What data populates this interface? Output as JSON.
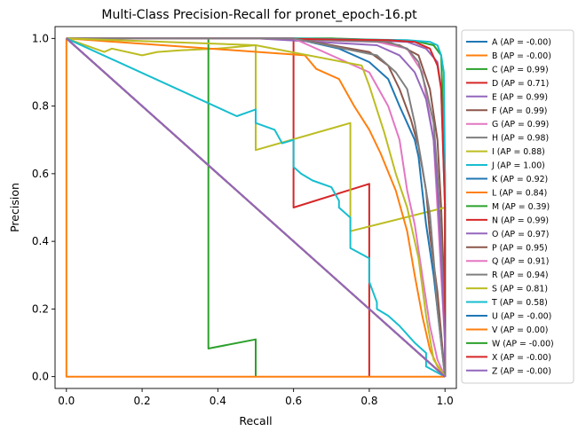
{
  "chart_data": {
    "type": "line",
    "title": "Multi-Class Precision-Recall for pronet_epoch-16.pt",
    "xlabel": "Recall",
    "ylabel": "Precision",
    "xlim": [
      -0.03,
      1.03
    ],
    "ylim": [
      -0.035,
      1.035
    ],
    "xticks": [
      0.0,
      0.2,
      0.4,
      0.6,
      0.8,
      1.0
    ],
    "yticks": [
      0.0,
      0.2,
      0.4,
      0.6,
      0.8,
      1.0
    ],
    "x_tick_labels": [
      "0.0",
      "0.2",
      "0.4",
      "0.6",
      "0.8",
      "1.0"
    ],
    "y_tick_labels": [
      "0.0",
      "0.2",
      "0.4",
      "0.6",
      "0.8",
      "1.0"
    ],
    "grid": false,
    "legend_position": "outside-right",
    "series": [
      {
        "name": "A (AP = -0.00)",
        "color": "#1f77b4",
        "x": [
          0,
          1
        ],
        "y": [
          1,
          0
        ]
      },
      {
        "name": "B (AP = -0.00)",
        "color": "#ff7f0e",
        "x": [
          0,
          1
        ],
        "y": [
          1,
          0
        ]
      },
      {
        "name": "C (AP = 0.99)",
        "color": "#2ca02c",
        "x": [
          0,
          0.4,
          0.7,
          0.85,
          0.93,
          0.97,
          0.99,
          1,
          1
        ],
        "y": [
          1,
          1,
          1,
          0.995,
          0.99,
          0.98,
          0.95,
          0.6,
          0
        ]
      },
      {
        "name": "D (AP = 0.71)",
        "color": "#d62728",
        "x": [
          0,
          0.6,
          0.6,
          0.8,
          0.8
        ],
        "y": [
          1,
          1,
          0.5,
          0.57,
          0
        ]
      },
      {
        "name": "E (AP = 0.99)",
        "color": "#9467bd",
        "x": [
          0,
          0.5,
          0.8,
          0.9,
          0.95,
          0.98,
          0.99,
          1,
          1
        ],
        "y": [
          1,
          1,
          0.995,
          0.99,
          0.97,
          0.93,
          0.85,
          0.5,
          0
        ]
      },
      {
        "name": "F (AP = 0.99)",
        "color": "#8c564b",
        "x": [
          0,
          0.5,
          0.8,
          0.88,
          0.93,
          0.96,
          0.98,
          0.99,
          1,
          1
        ],
        "y": [
          1,
          1,
          0.995,
          0.98,
          0.95,
          0.85,
          0.7,
          0.5,
          0.2,
          0
        ]
      },
      {
        "name": "G (AP = 0.99)",
        "color": "#e377c2",
        "x": [
          0,
          0.5,
          0.82,
          0.9,
          0.94,
          0.97,
          0.98,
          0.99,
          1,
          1
        ],
        "y": [
          1,
          1,
          0.99,
          0.97,
          0.9,
          0.7,
          0.5,
          0.3,
          0.1,
          0
        ]
      },
      {
        "name": "H (AP = 0.98)",
        "color": "#7f7f7f",
        "x": [
          0,
          0.5,
          0.85,
          0.9,
          0.93,
          0.95,
          0.97,
          0.98,
          0.99,
          1,
          1
        ],
        "y": [
          1,
          1,
          0.99,
          0.97,
          0.93,
          0.85,
          0.75,
          0.6,
          0.4,
          0.1,
          0
        ]
      },
      {
        "name": "I (AP = 0.88)",
        "color": "#bcbd22",
        "x": [
          0,
          0.1,
          0.12,
          0.2,
          0.24,
          0.3,
          0.4,
          0.5,
          0.5,
          0.75,
          0.75,
          1,
          1
        ],
        "y": [
          1,
          0.96,
          0.97,
          0.95,
          0.96,
          0.965,
          0.97,
          0.98,
          0.67,
          0.75,
          0.43,
          0.5,
          0
        ]
      },
      {
        "name": "J (AP = 1.00)",
        "color": "#17becf",
        "x": [
          0,
          0.6,
          0.9,
          0.96,
          0.98,
          0.99,
          0.997,
          1,
          1
        ],
        "y": [
          1,
          1,
          0.995,
          0.99,
          0.98,
          0.95,
          0.9,
          0.6,
          0
        ]
      },
      {
        "name": "K (AP = 0.92)",
        "color": "#1f77b4",
        "x": [
          0,
          0.6,
          0.72,
          0.8,
          0.85,
          0.88,
          0.9,
          0.92,
          0.93,
          0.94,
          0.95,
          0.97,
          1
        ],
        "y": [
          1,
          1,
          0.97,
          0.93,
          0.88,
          0.8,
          0.75,
          0.7,
          0.65,
          0.55,
          0.45,
          0.3,
          0
        ]
      },
      {
        "name": "L (AP = 0.84)",
        "color": "#ff7f0e",
        "x": [
          0,
          0.63,
          0.66,
          0.72,
          0.76,
          0.8,
          0.83,
          0.87,
          0.9,
          0.92,
          0.94,
          0.96,
          0.98,
          1
        ],
        "y": [
          1,
          0.95,
          0.91,
          0.88,
          0.8,
          0.73,
          0.66,
          0.55,
          0.43,
          0.3,
          0.18,
          0.08,
          0.03,
          0
        ]
      },
      {
        "name": "M (AP = 0.39)",
        "color": "#2ca02c",
        "x": [
          0,
          0.375,
          0.375,
          0.5,
          0.5
        ],
        "y": [
          1,
          1,
          0.083,
          0.11,
          0
        ]
      },
      {
        "name": "N (AP = 0.99)",
        "color": "#d62728",
        "x": [
          0,
          0.5,
          0.85,
          0.92,
          0.96,
          0.98,
          0.99,
          1,
          1
        ],
        "y": [
          1,
          1,
          0.995,
          0.99,
          0.97,
          0.92,
          0.85,
          0.5,
          0
        ]
      },
      {
        "name": "O (AP = 0.97)",
        "color": "#9467bd",
        "x": [
          0,
          0.5,
          0.82,
          0.88,
          0.92,
          0.95,
          0.97,
          0.98,
          0.99,
          1,
          1
        ],
        "y": [
          1,
          1,
          0.98,
          0.95,
          0.9,
          0.82,
          0.7,
          0.55,
          0.35,
          0.1,
          0
        ]
      },
      {
        "name": "P (AP = 0.95)",
        "color": "#8c564b",
        "x": [
          0,
          0.6,
          0.8,
          0.85,
          0.88,
          0.91,
          0.93,
          0.95,
          0.96,
          0.98,
          1
        ],
        "y": [
          1,
          1,
          0.96,
          0.92,
          0.85,
          0.76,
          0.68,
          0.55,
          0.42,
          0.25,
          0
        ]
      },
      {
        "name": "Q (AP = 0.91)",
        "color": "#e377c2",
        "x": [
          0,
          0.6,
          0.8,
          0.85,
          0.88,
          0.9,
          0.92,
          0.94,
          0.96,
          0.98,
          1
        ],
        "y": [
          1,
          1,
          0.9,
          0.8,
          0.7,
          0.55,
          0.45,
          0.3,
          0.15,
          0.05,
          0
        ]
      },
      {
        "name": "R (AP = 0.94)",
        "color": "#7f7f7f",
        "x": [
          0,
          0.6,
          0.82,
          0.87,
          0.9,
          0.92,
          0.94,
          0.96,
          0.97,
          0.98,
          1
        ],
        "y": [
          1,
          1,
          0.95,
          0.9,
          0.85,
          0.75,
          0.62,
          0.48,
          0.35,
          0.2,
          0
        ]
      },
      {
        "name": "S (AP = 0.81)",
        "color": "#bcbd22",
        "x": [
          0,
          0.5,
          0.78,
          0.8,
          0.84,
          0.87,
          0.9,
          0.93,
          0.95,
          0.97,
          1
        ],
        "y": [
          1,
          0.98,
          0.92,
          0.86,
          0.72,
          0.6,
          0.5,
          0.35,
          0.18,
          0.05,
          0
        ]
      },
      {
        "name": "T (AP = 0.58)",
        "color": "#17becf",
        "x": [
          0,
          0.45,
          0.5,
          0.5,
          0.55,
          0.57,
          0.6,
          0.6,
          0.62,
          0.65,
          0.7,
          0.72,
          0.72,
          0.75,
          0.75,
          0.8,
          0.8,
          0.82,
          0.82,
          0.85,
          0.88,
          0.92,
          0.95,
          0.95,
          1
        ],
        "y": [
          1,
          0.77,
          0.79,
          0.75,
          0.73,
          0.69,
          0.7,
          0.62,
          0.6,
          0.58,
          0.56,
          0.52,
          0.5,
          0.47,
          0.38,
          0.35,
          0.28,
          0.22,
          0.2,
          0.18,
          0.15,
          0.1,
          0.07,
          0.03,
          0
        ]
      },
      {
        "name": "U (AP = -0.00)",
        "color": "#1f77b4",
        "x": [
          0,
          1
        ],
        "y": [
          1,
          0
        ]
      },
      {
        "name": "V (AP = 0.00)",
        "color": "#ff7f0e",
        "x": [
          0,
          0,
          1
        ],
        "y": [
          1,
          0,
          0
        ]
      },
      {
        "name": "W (AP = -0.00)",
        "color": "#2ca02c",
        "x": [
          0,
          1
        ],
        "y": [
          1,
          0
        ]
      },
      {
        "name": "X (AP = -0.00)",
        "color": "#d62728",
        "x": [
          0,
          1
        ],
        "y": [
          1,
          0
        ]
      },
      {
        "name": "Z (AP = -0.00)",
        "color": "#9467bd",
        "x": [
          0,
          1
        ],
        "y": [
          1,
          0
        ]
      }
    ]
  }
}
